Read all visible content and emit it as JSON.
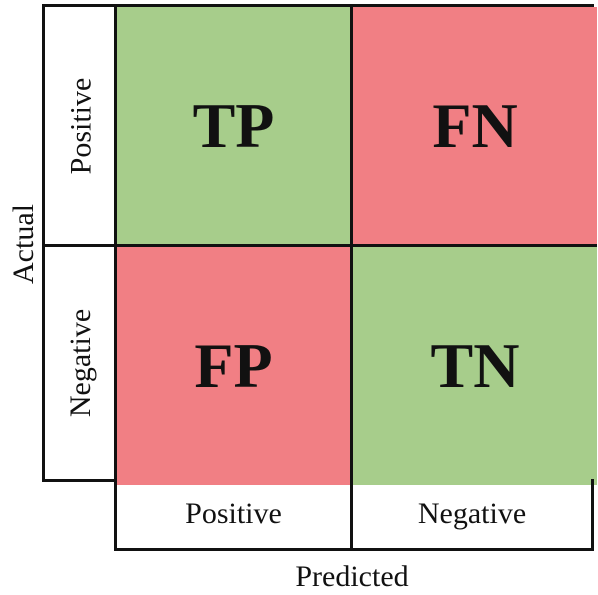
{
  "axes": {
    "actual_label": "Actual",
    "predicted_label": "Predicted"
  },
  "rows": {
    "positive": "Positive",
    "negative": "Negative"
  },
  "columns": {
    "positive": "Positive",
    "negative": "Negative"
  },
  "cells": {
    "tp": "TP",
    "fn": "FN",
    "fp": "FP",
    "tn": "TN"
  },
  "colors": {
    "correct": "#a7cd8b",
    "incorrect": "#f17f84",
    "border": "#111111"
  }
}
